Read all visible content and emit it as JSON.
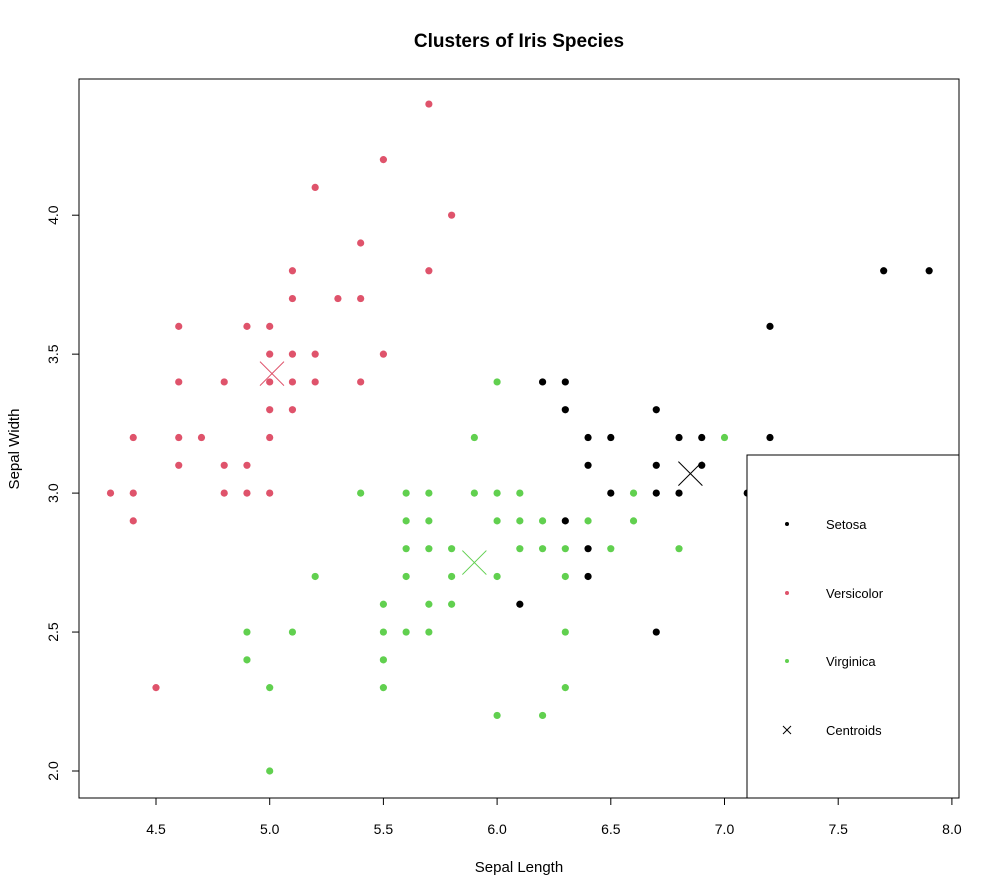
{
  "chart_data": {
    "type": "scatter",
    "title": "Clusters of Iris Species",
    "xlabel": "Sepal Length",
    "ylabel": "Sepal Width",
    "xlim": [
      4.2,
      8.05
    ],
    "ylim": [
      1.9,
      4.5
    ],
    "x_ticks": [
      "4.5",
      "5.0",
      "5.5",
      "6.0",
      "6.5",
      "7.0",
      "7.5",
      "8.0"
    ],
    "y_ticks": [
      "2.0",
      "2.5",
      "3.0",
      "3.5",
      "4.0"
    ],
    "grid": false,
    "legend_position": "bottom-right",
    "colors": {
      "cluster1": "#000000",
      "cluster2": "#DF536B",
      "cluster3": "#61D04F"
    },
    "series": [
      {
        "name": "Setosa",
        "color": "#000000",
        "points": [
          [
            7.7,
            3.8
          ],
          [
            7.9,
            3.8
          ],
          [
            7.2,
            3.6
          ],
          [
            6.2,
            3.4
          ],
          [
            6.3,
            3.4
          ],
          [
            6.3,
            3.3
          ],
          [
            6.7,
            3.3
          ],
          [
            6.4,
            3.2
          ],
          [
            6.5,
            3.2
          ],
          [
            6.8,
            3.2
          ],
          [
            6.9,
            3.2
          ],
          [
            7.2,
            3.2
          ],
          [
            6.4,
            3.1
          ],
          [
            6.7,
            3.1
          ],
          [
            6.9,
            3.1
          ],
          [
            6.5,
            3.0
          ],
          [
            6.7,
            3.0
          ],
          [
            6.8,
            3.0
          ],
          [
            7.1,
            3.0
          ],
          [
            6.3,
            2.9
          ],
          [
            6.4,
            2.8
          ],
          [
            6.4,
            2.7
          ],
          [
            6.1,
            2.6
          ],
          [
            6.7,
            2.5
          ]
        ]
      },
      {
        "name": "Versicolor",
        "color": "#DF536B",
        "points": [
          [
            5.7,
            4.4
          ],
          [
            5.5,
            4.2
          ],
          [
            5.2,
            4.1
          ],
          [
            5.8,
            4.0
          ],
          [
            5.4,
            3.9
          ],
          [
            5.1,
            3.8
          ],
          [
            5.7,
            3.8
          ],
          [
            5.1,
            3.7
          ],
          [
            5.3,
            3.7
          ],
          [
            5.4,
            3.7
          ],
          [
            4.6,
            3.6
          ],
          [
            4.9,
            3.6
          ],
          [
            5.0,
            3.6
          ],
          [
            5.0,
            3.5
          ],
          [
            5.1,
            3.5
          ],
          [
            5.2,
            3.5
          ],
          [
            5.5,
            3.5
          ],
          [
            4.6,
            3.4
          ],
          [
            4.8,
            3.4
          ],
          [
            5.0,
            3.4
          ],
          [
            5.1,
            3.4
          ],
          [
            5.2,
            3.4
          ],
          [
            5.4,
            3.4
          ],
          [
            5.0,
            3.3
          ],
          [
            5.1,
            3.3
          ],
          [
            4.4,
            3.2
          ],
          [
            4.6,
            3.2
          ],
          [
            4.7,
            3.2
          ],
          [
            5.0,
            3.2
          ],
          [
            4.6,
            3.1
          ],
          [
            4.8,
            3.1
          ],
          [
            4.9,
            3.1
          ],
          [
            4.3,
            3.0
          ],
          [
            4.4,
            3.0
          ],
          [
            4.8,
            3.0
          ],
          [
            4.9,
            3.0
          ],
          [
            5.0,
            3.0
          ],
          [
            4.4,
            2.9
          ],
          [
            4.5,
            2.3
          ]
        ]
      },
      {
        "name": "Virginica",
        "color": "#61D04F",
        "points": [
          [
            6.0,
            3.4
          ],
          [
            5.9,
            3.2
          ],
          [
            7.0,
            3.2
          ],
          [
            5.4,
            3.0
          ],
          [
            5.6,
            3.0
          ],
          [
            5.7,
            3.0
          ],
          [
            5.9,
            3.0
          ],
          [
            6.0,
            3.0
          ],
          [
            6.1,
            3.0
          ],
          [
            6.6,
            3.0
          ],
          [
            5.6,
            2.9
          ],
          [
            5.7,
            2.9
          ],
          [
            6.0,
            2.9
          ],
          [
            6.1,
            2.9
          ],
          [
            6.2,
            2.9
          ],
          [
            6.4,
            2.9
          ],
          [
            6.6,
            2.9
          ],
          [
            5.6,
            2.8
          ],
          [
            5.7,
            2.8
          ],
          [
            5.8,
            2.8
          ],
          [
            6.1,
            2.8
          ],
          [
            6.2,
            2.8
          ],
          [
            6.3,
            2.8
          ],
          [
            6.5,
            2.8
          ],
          [
            6.8,
            2.8
          ],
          [
            5.2,
            2.7
          ],
          [
            5.6,
            2.7
          ],
          [
            5.8,
            2.7
          ],
          [
            6.0,
            2.7
          ],
          [
            6.3,
            2.7
          ],
          [
            5.5,
            2.6
          ],
          [
            5.7,
            2.6
          ],
          [
            5.8,
            2.6
          ],
          [
            4.9,
            2.5
          ],
          [
            5.1,
            2.5
          ],
          [
            5.5,
            2.5
          ],
          [
            5.6,
            2.5
          ],
          [
            5.7,
            2.5
          ],
          [
            6.3,
            2.5
          ],
          [
            4.9,
            2.4
          ],
          [
            5.5,
            2.4
          ],
          [
            5.0,
            2.3
          ],
          [
            5.5,
            2.3
          ],
          [
            6.3,
            2.3
          ],
          [
            6.0,
            2.2
          ],
          [
            6.2,
            2.2
          ],
          [
            5.0,
            2.0
          ]
        ]
      }
    ],
    "centroids": {
      "name": "Centroids",
      "points": [
        {
          "x": 6.85,
          "y": 3.07,
          "color": "#000000"
        },
        {
          "x": 5.01,
          "y": 3.43,
          "color": "#DF536B"
        },
        {
          "x": 5.9,
          "y": 2.75,
          "color": "#61D04F"
        }
      ]
    },
    "legend": [
      {
        "label": "Setosa",
        "color": "#000000",
        "marker": "dot"
      },
      {
        "label": "Versicolor",
        "color": "#DF536B",
        "marker": "dot"
      },
      {
        "label": "Virginica",
        "color": "#61D04F",
        "marker": "dot"
      },
      {
        "label": "Centroids",
        "color": "#000000",
        "marker": "cross"
      }
    ]
  }
}
